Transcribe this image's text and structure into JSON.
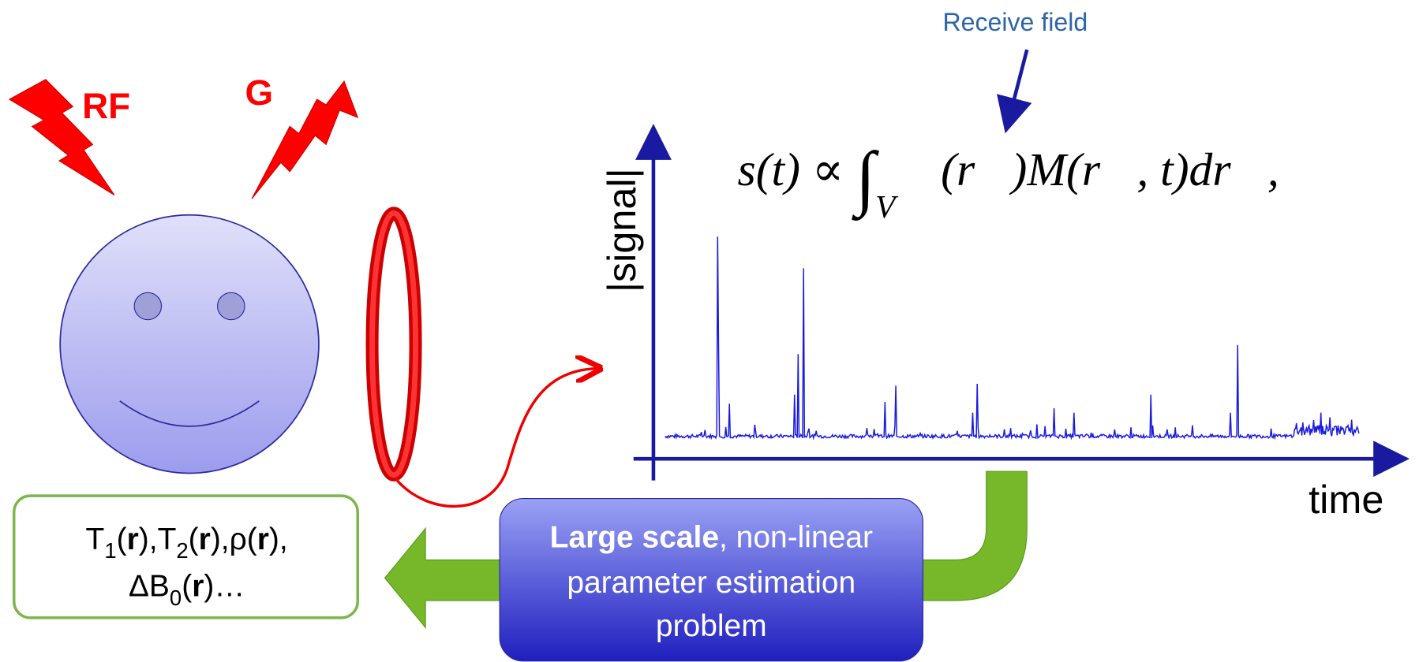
{
  "annotation": "Receive field",
  "pulses": {
    "rf": "RF",
    "gradient": "G"
  },
  "plot": {
    "y_label": "|signal|",
    "x_label": "time"
  },
  "formula": {
    "lhs": "s(t) ∝ ",
    "integral": "∫",
    "domain": "V",
    "rhs": "𝓑(r⃗)M(r⃗, t)dr⃗,"
  },
  "parameters": {
    "line1": [
      "T",
      "1",
      "(",
      "r",
      "),T",
      "2",
      "(",
      "r",
      "),ρ(",
      "r",
      "),"
    ],
    "line2": [
      "ΔB",
      "0",
      "(",
      "r",
      ")…"
    ]
  },
  "estimation": {
    "bold": "Large scale",
    "line1_rest": ", non-linear",
    "line2": "parameter estimation",
    "line3": "problem"
  }
}
